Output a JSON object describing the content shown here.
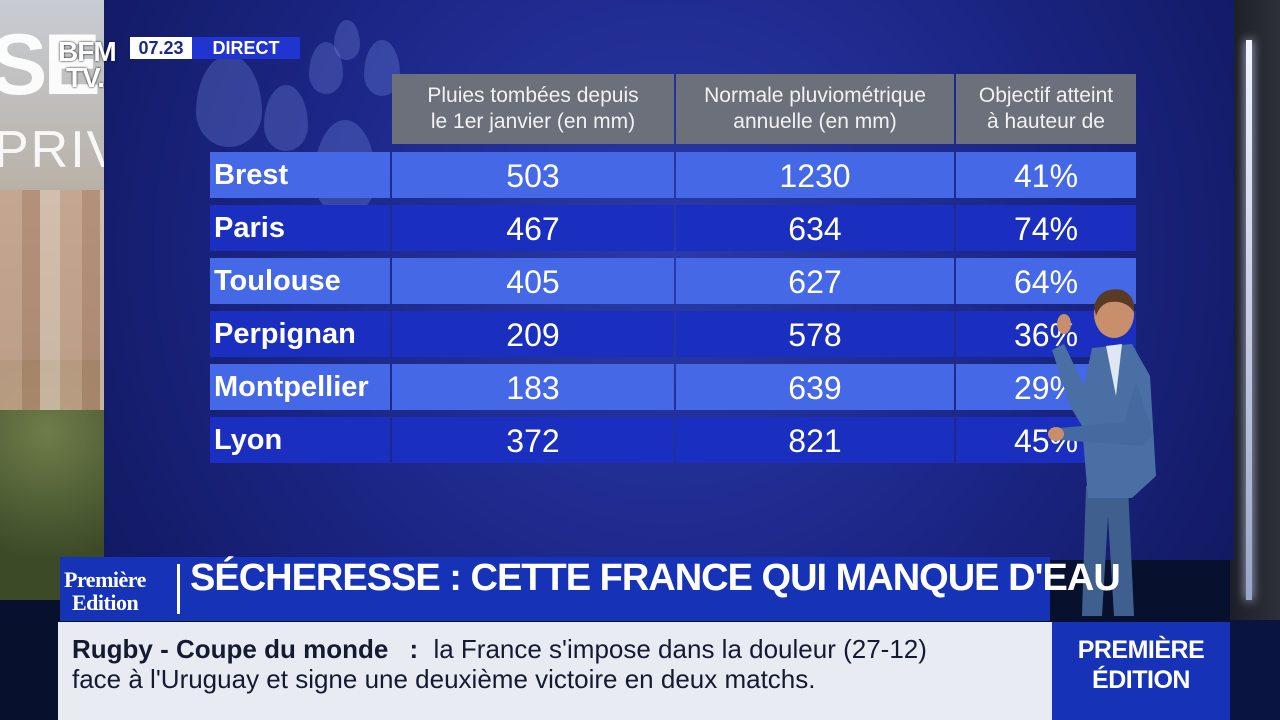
{
  "channel": {
    "logo_line1": "BFM",
    "logo_line2": "TV.",
    "time": "07.23",
    "live_label": "DIRECT"
  },
  "left_panel": {
    "big_text": "SE",
    "side_text": "PRIVE"
  },
  "table": {
    "headers": [
      {
        "line1": "Pluies tombées depuis",
        "line2": "le 1er janvier (en mm)"
      },
      {
        "line1": "Normale pluviométrique",
        "line2": "annuelle (en mm)"
      },
      {
        "line1": "Objectif atteint",
        "line2": "à hauteur de"
      }
    ],
    "rows": [
      {
        "city": "Brest",
        "rain": "503",
        "normal": "1230",
        "ratio": "41%"
      },
      {
        "city": "Paris",
        "rain": "467",
        "normal": "634",
        "ratio": "74%"
      },
      {
        "city": "Toulouse",
        "rain": "405",
        "normal": "627",
        "ratio": "64%"
      },
      {
        "city": "Perpignan",
        "rain": "209",
        "normal": "578",
        "ratio": "36%"
      },
      {
        "city": "Montpellier",
        "rain": "183",
        "normal": "639",
        "ratio": "29%"
      },
      {
        "city": "Lyon",
        "rain": "372",
        "normal": "821",
        "ratio": "45%"
      }
    ]
  },
  "lower_third": {
    "show_logo_line1": "Première",
    "show_logo_line2": "Edition",
    "headline": "SÉCHERESSE : CETTE FRANCE QUI MANQUE D'EAU"
  },
  "ticker": {
    "topic": "Rugby - Coupe du monde",
    "separator": ":",
    "line1": "la France s'impose dans la douleur (27-12)",
    "line2": "face à l'Uruguay et signe une deuxième victoire en deux matchs."
  },
  "show_box": {
    "line1": "PREMIÈRE",
    "line2": "ÉDITION"
  },
  "colors": {
    "screen_blue": "#1c2788",
    "row_light": "#4468e6",
    "row_dark": "#1a2fbf",
    "header_grey": "#6c707a",
    "brand_blue": "#1633b8"
  }
}
